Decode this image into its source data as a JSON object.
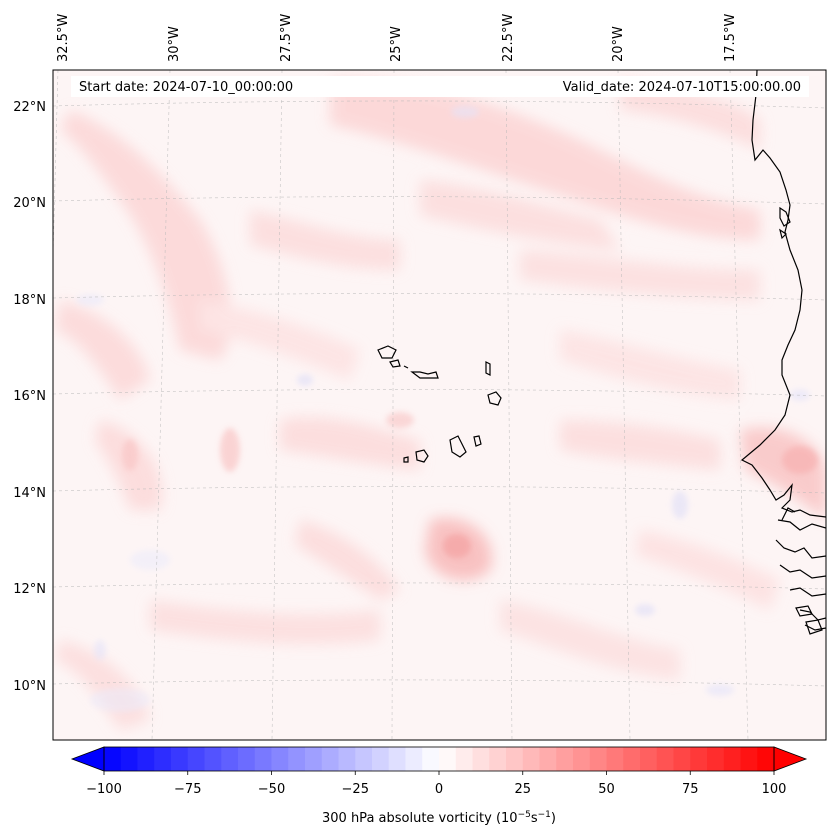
{
  "map": {
    "title_left": "Start date: 2024-07-10_00:00:00",
    "title_right": "Valid_date: 2024-07-10T15:00:00.00",
    "longitude_labels": [
      "32.5°W",
      "30°W",
      "27.5°W",
      "25°W",
      "22.5°W",
      "20°W",
      "17.5°W"
    ],
    "latitude_labels": [
      "22°N",
      "20°N",
      "18°N",
      "16°N",
      "14°N",
      "12°N",
      "10°N"
    ],
    "field": "300 hPa absolute vorticity",
    "region": "Cape Verde and West African coast"
  },
  "colorbar": {
    "label_main": "300 hPa absolute vorticity (10",
    "label_exp1": "−5",
    "label_mid": "s",
    "label_exp2": "−1",
    "label_end": ")",
    "ticks": [
      "−100",
      "−75",
      "−50",
      "−25",
      "0",
      "25",
      "50",
      "75",
      "100"
    ],
    "min": -100,
    "max": 100,
    "neg_color": "#0000ff",
    "pos_color": "#ff0000"
  }
}
